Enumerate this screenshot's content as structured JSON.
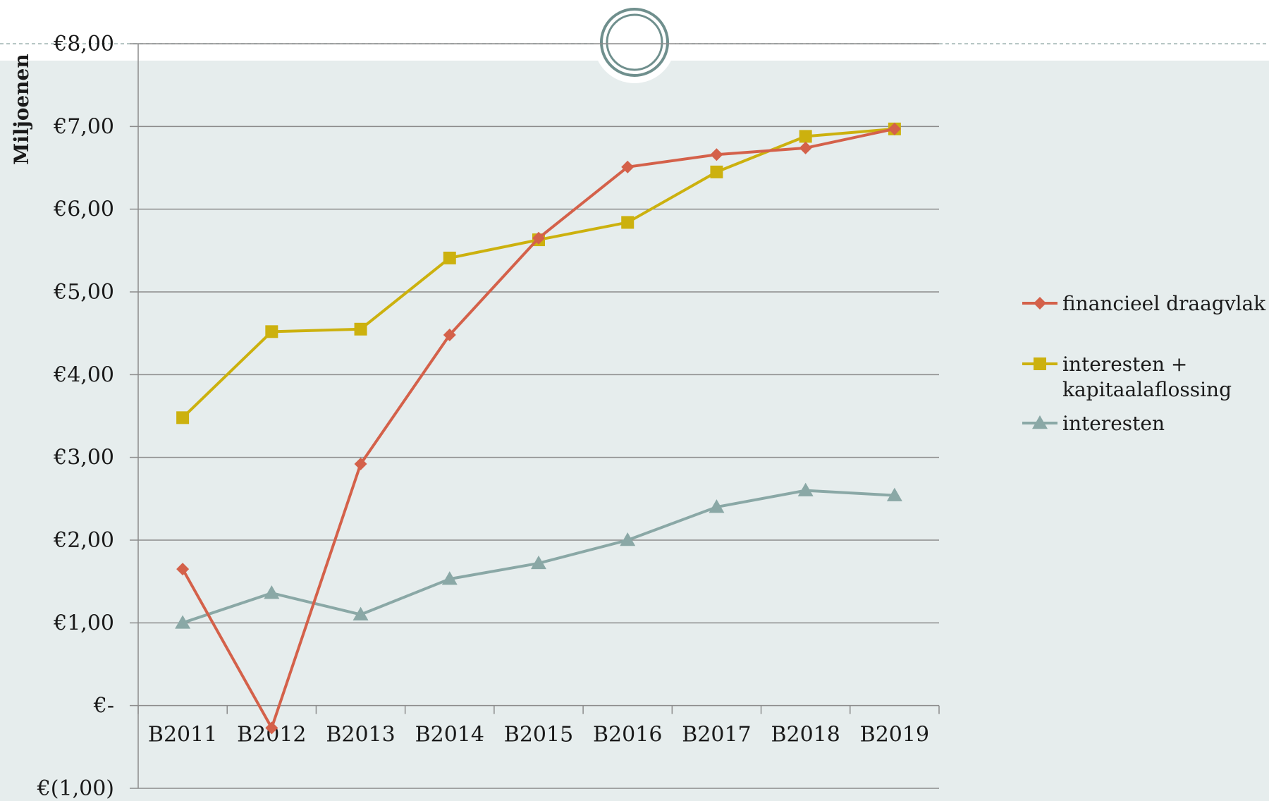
{
  "chart_data": {
    "type": "line",
    "categories": [
      "B2011",
      "B2012",
      "B2013",
      "B2014",
      "B2015",
      "B2016",
      "B2017",
      "B2018",
      "B2019"
    ],
    "ylabel": "Miljoenen",
    "ylim": [
      -1,
      8
    ],
    "ytick_labels": [
      "€(1,00)",
      "€-",
      "€1,00",
      "€2,00",
      "€3,00",
      "€4,00",
      "€5,00",
      "€6,00",
      "€7,00",
      "€8,00"
    ],
    "grid": true,
    "legend_position": "right",
    "series": [
      {
        "name": "financieel draagvlak",
        "marker": "diamond",
        "color": "#d4614a",
        "values": [
          1.65,
          -0.27,
          2.92,
          4.48,
          5.65,
          6.51,
          6.66,
          6.74,
          6.97
        ]
      },
      {
        "name": "interesten + kapitaalaflossing",
        "legend_lines": [
          "interesten +",
          "kapitaalaflossing"
        ],
        "marker": "square",
        "color": "#ccb10e",
        "values": [
          3.48,
          4.52,
          4.55,
          5.41,
          5.63,
          5.84,
          6.45,
          6.88,
          6.97
        ]
      },
      {
        "name": "interesten",
        "marker": "triangle",
        "color": "#8aa8a6",
        "values": [
          1.0,
          1.36,
          1.1,
          1.53,
          1.72,
          2.0,
          2.4,
          2.6,
          2.54
        ]
      }
    ]
  },
  "colors": {
    "panel_background": "#e6eded",
    "gridline": "#8c8c8c",
    "ring": "#6f8f8d"
  },
  "decor": {
    "top_ring_icon": "double-ring-ornament"
  }
}
